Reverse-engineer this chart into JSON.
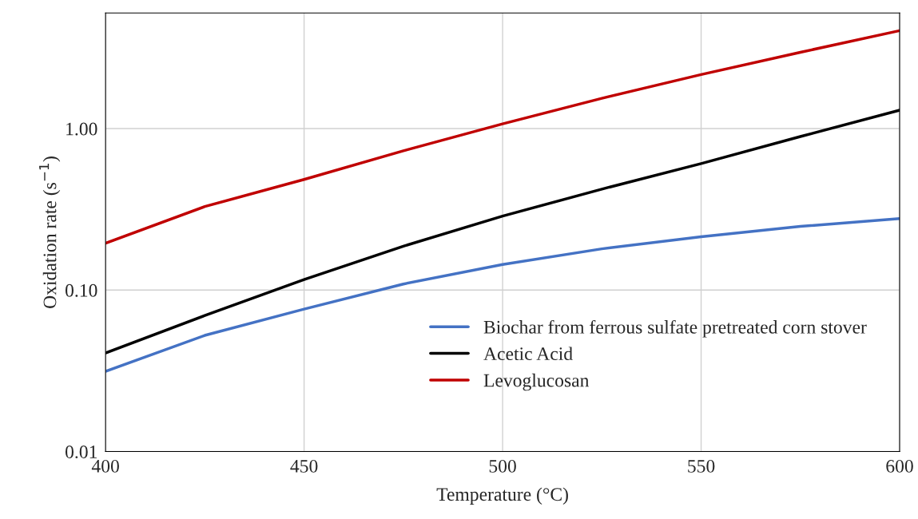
{
  "chart_data": {
    "type": "line",
    "xlabel": "Temperature (°C)",
    "ylabel": "Oxidation rate (s$^{−1}$)",
    "x": [
      400,
      425,
      450,
      475,
      500,
      525,
      550,
      575,
      600
    ],
    "series": [
      {
        "name": "Biochar from ferrous sulfate pretreated corn stover",
        "color": "#4472c4",
        "values": [
          0.0314,
          0.0524,
          0.0762,
          0.109,
          0.144,
          0.18,
          0.214,
          0.248,
          0.277
        ]
      },
      {
        "name": "Acetic Acid",
        "color": "#000000",
        "values": [
          0.0408,
          0.0695,
          0.116,
          0.187,
          0.287,
          0.422,
          0.607,
          0.893,
          1.3
        ]
      },
      {
        "name": "Levoglucosan",
        "color": "#c00000",
        "values": [
          0.195,
          0.329,
          0.484,
          0.728,
          1.07,
          1.54,
          2.16,
          2.97,
          4.04
        ]
      }
    ],
    "log": "y",
    "xlim": [
      400,
      600
    ],
    "xticks": [
      400,
      450,
      500,
      550,
      600
    ],
    "ylim": [
      0.01,
      5.2
    ],
    "yticks": [
      {
        "value": 0.01,
        "label": "0.01"
      },
      {
        "value": 0.1,
        "label": "0.10"
      },
      {
        "value": 1,
        "label": "1.00"
      }
    ],
    "grid": true,
    "legend": "bottom right",
    "marker": "none",
    "line_style": "solid"
  }
}
